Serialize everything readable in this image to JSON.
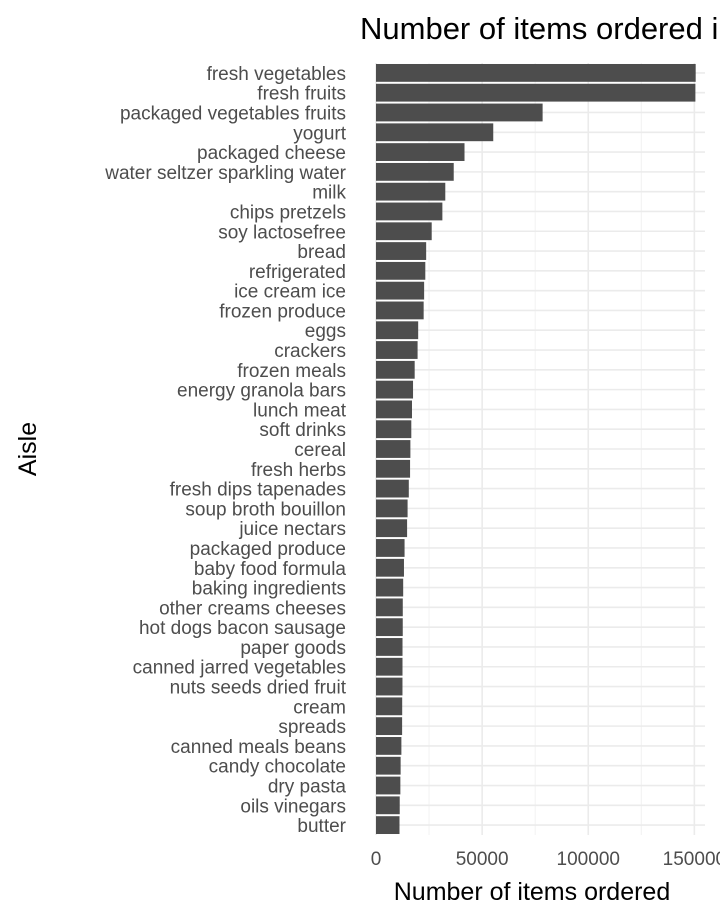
{
  "chart_data": {
    "type": "bar",
    "orientation": "horizontal",
    "title": "Number of items ordered in each aisle",
    "xlabel": "Number of items ordered",
    "ylabel": "Aisle",
    "xlim": [
      0,
      155000
    ],
    "x_ticks": [
      0,
      50000,
      100000,
      150000
    ],
    "x_tick_labels": [
      "0",
      "50000",
      "100000",
      "150000"
    ],
    "grid": true,
    "bar_color": "#4d4d4d",
    "categories": [
      "fresh vegetables",
      "fresh fruits",
      "packaged vegetables fruits",
      "yogurt",
      "packaged cheese",
      "water seltzer sparkling water",
      "milk",
      "chips pretzels",
      "soy lactosefree",
      "bread",
      "refrigerated",
      "ice cream ice",
      "frozen produce",
      "eggs",
      "crackers",
      "frozen meals",
      "energy granola bars",
      "lunch meat",
      "soft drinks",
      "cereal",
      "fresh herbs",
      "fresh dips tapenades",
      "soup broth bouillon",
      "juice nectars",
      "packaged produce",
      "baby food formula",
      "baking ingredients",
      "other creams cheeses",
      "hot dogs bacon sausage",
      "paper goods",
      "canned jarred vegetables",
      "nuts seeds dried fruit",
      "cream",
      "spreads",
      "canned meals beans",
      "candy chocolate",
      "dry pasta",
      "oils vinegars",
      "butter"
    ],
    "values": [
      150609,
      150473,
      78493,
      55240,
      41699,
      36617,
      32644,
      31269,
      26240,
      23635,
      23228,
      22676,
      22453,
      19875,
      19592,
      18221,
      17449,
      16957,
      16633,
      16201,
      16052,
      15454,
      14882,
      14648,
      13460,
      13175,
      12807,
      12615,
      12603,
      12493,
      12484,
      12470,
      12344,
      12304,
      11960,
      11607,
      11479,
      11176,
      11071
    ]
  }
}
